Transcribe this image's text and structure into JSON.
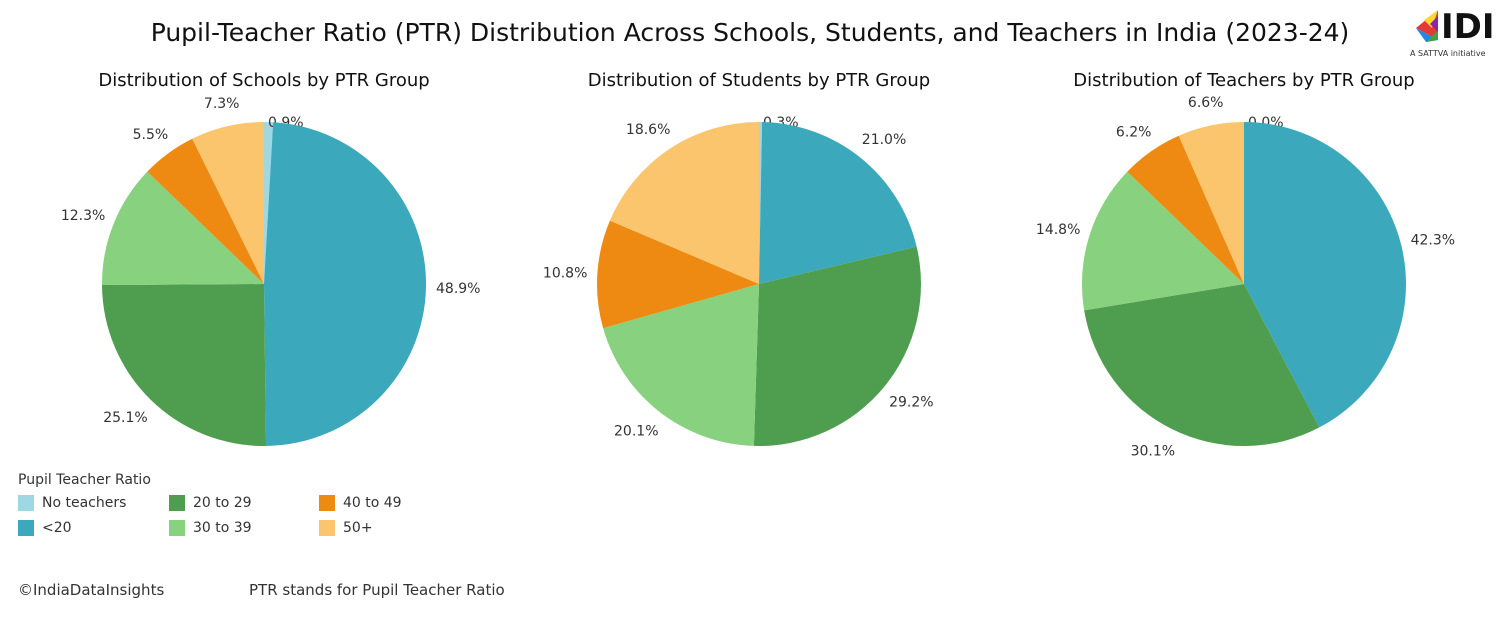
{
  "title": "Pupil-Teacher Ratio (PTR) Distribution Across Schools, Students, and Teachers in India (2023-24)",
  "logo": {
    "icon": "idi-logo-icon",
    "wordmark": "IDI",
    "tagline": "A SATTVA initiative"
  },
  "legend": {
    "title": "Pupil Teacher Ratio",
    "items": [
      {
        "label": "No teachers",
        "color": "#9fd8e3"
      },
      {
        "label": "<20",
        "color": "#3ca8bc"
      },
      {
        "label": "20 to 29",
        "color": "#4f9e4f"
      },
      {
        "label": "30 to 39",
        "color": "#88d17f"
      },
      {
        "label": "40 to 49",
        "color": "#ee8a11"
      },
      {
        "label": "50+",
        "color": "#fbc56d"
      }
    ]
  },
  "chart_data": [
    {
      "type": "pie",
      "title": "Distribution of Schools by PTR Group",
      "categories": [
        "No teachers",
        "<20",
        "20 to 29",
        "30 to 39",
        "40 to 49",
        "50+"
      ],
      "values": [
        0.9,
        48.9,
        25.1,
        12.3,
        5.5,
        7.3
      ],
      "labels": [
        "0.9%",
        "48.9%",
        "25.1%",
        "12.3%",
        "5.5%",
        "7.3%"
      ]
    },
    {
      "type": "pie",
      "title": "Distribution of Students by PTR Group",
      "categories": [
        "No teachers",
        "<20",
        "20 to 29",
        "30 to 39",
        "40 to 49",
        "50+"
      ],
      "values": [
        0.3,
        21.0,
        29.2,
        20.1,
        10.8,
        18.6
      ],
      "labels": [
        "0.3%",
        "21.0%",
        "29.2%",
        "20.1%",
        "10.8%",
        "18.6%"
      ]
    },
    {
      "type": "pie",
      "title": "Distribution of Teachers by PTR Group",
      "categories": [
        "No teachers",
        "<20",
        "20 to 29",
        "30 to 39",
        "40 to 49",
        "50+"
      ],
      "values": [
        0.0,
        42.3,
        30.1,
        14.8,
        6.2,
        6.6
      ],
      "labels": [
        "0.0%",
        "42.3%",
        "30.1%",
        "14.8%",
        "6.2%",
        "6.6%"
      ]
    }
  ],
  "footer": {
    "copyright": "©IndiaDataInsights",
    "note": "PTR stands for Pupil Teacher Ratio"
  }
}
